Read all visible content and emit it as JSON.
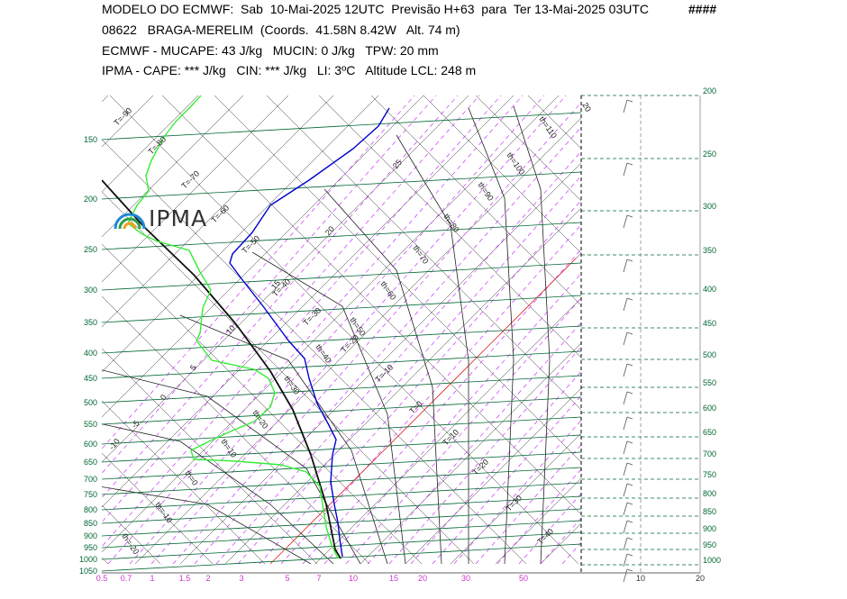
{
  "header": {
    "line1": "MODELO DO ECMWF:  Sab  10-Mai-2025 12UTC  Previsão H+63  para  Ter 13-Mai-2025 03UTC",
    "line1_mark": "####",
    "line2": "08622   BRAGA-MERELIM  (Coords.  41.58N 8.42W   Alt. 74 m)",
    "line3": "ECMWF - MUCAPE: 43 J/kg   MUCIN: 0 J/kg   TPW: 20 mm",
    "line4": "IPMA - CAPE: *** J/kg   CIN: *** J/kg   LI: 3ºC   Altitude LCL: 248 m"
  },
  "logo": {
    "text": "IPMA",
    "icon": "ipma-rainbow-logo-icon"
  },
  "colors": {
    "isobar": "#006633",
    "temperature": "#111111",
    "dewpoint": "#0000cc",
    "humidity_line": "#33ee33",
    "mixing_ratio": "#cc33ff",
    "isotherm_zero": "#dd2222",
    "dry_adiabat": "#222222",
    "pressure_label_left": "#006633",
    "pressure_label_right": "#006633",
    "mixing_label": "#cc33cc"
  },
  "chart_data": {
    "type": "line",
    "title": "",
    "pressure_levels_left": [
      "150",
      "200",
      "250",
      "300",
      "350",
      "400",
      "450",
      "500",
      "550",
      "600",
      "650",
      "700",
      "750",
      "800",
      "850",
      "900",
      "950",
      "1000",
      "1050"
    ],
    "pressure_levels_right": [
      "200",
      "250",
      "300",
      "350",
      "400",
      "450",
      "500",
      "550",
      "600",
      "650",
      "700",
      "750",
      "800",
      "850",
      "900",
      "950",
      "1000"
    ],
    "mixing_ratio_labels": [
      "0.5",
      "0.7",
      "1",
      "1.5",
      "2",
      "3",
      "5",
      "7",
      "10",
      "15",
      "20",
      "30",
      "50"
    ],
    "wind_axis_labels": [
      "10",
      "20"
    ],
    "isotherm_labels": [
      "T=-90",
      "T=-80",
      "T=-70",
      "T=-60",
      "T=-50",
      "T=-40",
      "T=-30",
      "T=-20",
      "T=-10",
      "T=0",
      "T=10",
      "T=20",
      "T=30",
      "T=40"
    ],
    "dry_adiabat_labels": [
      "th=110",
      "th=100",
      "th=90",
      "th=80",
      "th=70",
      "th=60",
      "th=50",
      "th=40",
      "th=30",
      "th=20",
      "th=10",
      "th=0",
      "th=-10",
      "th=-20"
    ],
    "moist_adiabat_labels": [
      "25",
      "20",
      "15",
      "10",
      "5",
      "0",
      "-5",
      "-10"
    ],
    "top_label": "20",
    "series": [
      {
        "key": "temperature",
        "points": [
          [
            113,
            200
          ],
          [
            160,
            252
          ],
          [
            215,
            305
          ],
          [
            262,
            360
          ],
          [
            300,
            412
          ],
          [
            325,
            455
          ],
          [
            345,
            505
          ],
          [
            362,
            560
          ],
          [
            372,
            610
          ],
          [
            378,
            620
          ]
        ]
      },
      {
        "key": "dewpoint",
        "points": [
          [
            432,
            120
          ],
          [
            420,
            140
          ],
          [
            392,
            165
          ],
          [
            343,
            200
          ],
          [
            300,
            228
          ],
          [
            280,
            258
          ],
          [
            258,
            282
          ],
          [
            255,
            292
          ],
          [
            270,
            312
          ],
          [
            292,
            340
          ],
          [
            320,
            378
          ],
          [
            338,
            398
          ],
          [
            343,
            420
          ],
          [
            352,
            448
          ],
          [
            365,
            472
          ],
          [
            373,
            488
          ],
          [
            369,
            505
          ],
          [
            367,
            535
          ],
          [
            371,
            560
          ],
          [
            375,
            580
          ],
          [
            377,
            598
          ],
          [
            380,
            618
          ]
        ]
      },
      {
        "key": "humidity",
        "points": [
          [
            223,
            106
          ],
          [
            212,
            118
          ],
          [
            195,
            135
          ],
          [
            182,
            152
          ],
          [
            168,
            178
          ],
          [
            162,
            195
          ],
          [
            165,
            212
          ],
          [
            152,
            228
          ],
          [
            142,
            248
          ],
          [
            158,
            260
          ],
          [
            175,
            268
          ],
          [
            210,
            278
          ],
          [
            222,
            302
          ],
          [
            234,
            322
          ],
          [
            225,
            342
          ],
          [
            222,
            370
          ],
          [
            218,
            378
          ],
          [
            235,
            400
          ],
          [
            282,
            410
          ],
          [
            298,
            420
          ],
          [
            305,
            436
          ],
          [
            300,
            452
          ],
          [
            282,
            468
          ],
          [
            258,
            478
          ],
          [
            232,
            490
          ],
          [
            212,
            500
          ],
          [
            215,
            510
          ],
          [
            262,
            512
          ],
          [
            312,
            516
          ],
          [
            340,
            524
          ],
          [
            355,
            540
          ],
          [
            358,
            560
          ],
          [
            362,
            585
          ],
          [
            368,
            605
          ],
          [
            375,
            620
          ]
        ]
      }
    ]
  }
}
